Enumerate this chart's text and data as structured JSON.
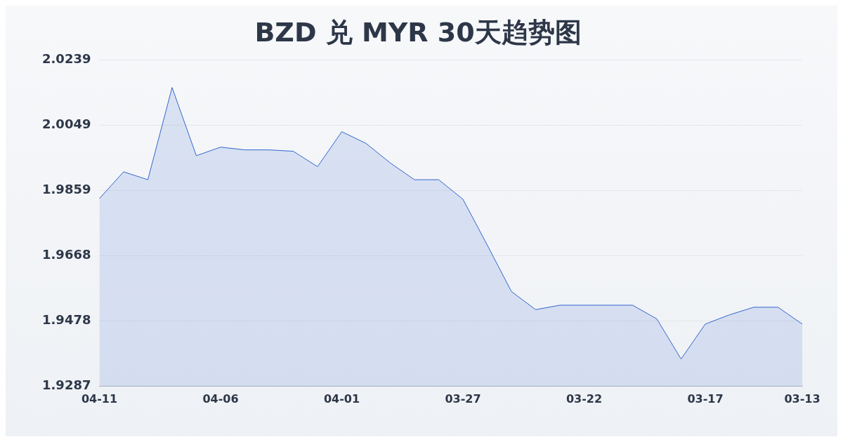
{
  "chart_data": {
    "type": "area",
    "title": "BZD 兑 MYR 30天趋势图",
    "categories": [
      "04-11",
      null,
      null,
      null,
      null,
      "04-06",
      null,
      null,
      null,
      null,
      "04-01",
      null,
      null,
      null,
      null,
      "03-27",
      null,
      null,
      null,
      null,
      "03-22",
      null,
      null,
      null,
      null,
      "03-17",
      null,
      null,
      null,
      "03-13"
    ],
    "series": [
      {
        "color": "#3366cc",
        "values": [
          1.9835,
          1.9913,
          1.989,
          2.0159,
          1.996,
          1.9985,
          1.9977,
          1.9977,
          1.9973,
          1.9928,
          2.003,
          1.9996,
          1.9939,
          1.989,
          1.989,
          1.9833,
          1.97,
          1.9564,
          1.9511,
          1.9524,
          1.9524,
          1.9524,
          1.9524,
          1.9484,
          1.9367,
          1.9469,
          1.9496,
          1.9518,
          1.9518,
          1.9469
        ]
      }
    ],
    "ylim": [
      1.9287,
      2.0239
    ],
    "yticks": [
      1.9287,
      1.9478,
      1.9668,
      1.9859,
      2.0049,
      2.0239
    ],
    "grid": "y",
    "legend": false,
    "marker": "none",
    "line_style": "solid"
  }
}
